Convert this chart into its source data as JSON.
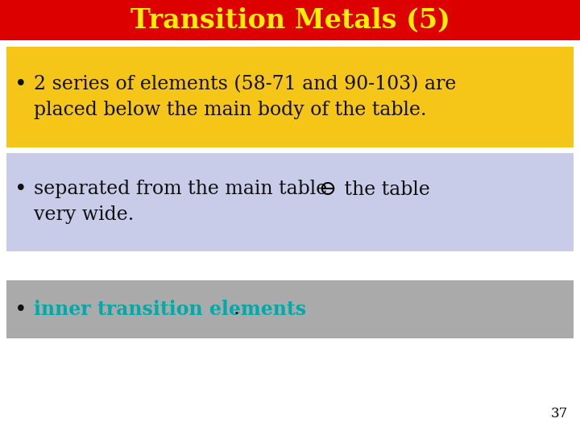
{
  "title": "Transition Metals (5)",
  "title_bg_color": "#dd0000",
  "title_text_color": "#ffee00",
  "title_fontsize": 24,
  "bg_color": "#ffffff",
  "bullet1_line1": "2 series of elements (58-71 and 90-103) are",
  "bullet1_line2": "placed below the main body of the table.",
  "bullet1_bg_color": "#f5c518",
  "bullet1_text_color": "#111111",
  "bullet2_line1": "separated from the main table",
  "bullet2_line1b": " the table",
  "bullet2_line2": "very wide.",
  "bullet2_bg_color": "#c8cce8",
  "bullet2_text_color": "#111111",
  "bullet3_text_colored": "inner transition elements",
  "bullet3_text_end": ".",
  "bullet3_bg_color": "#aaaaaa",
  "bullet3_highlight_color": "#00aaaa",
  "page_number": "37",
  "fontsize_main": 17,
  "fontsize_title": 24
}
